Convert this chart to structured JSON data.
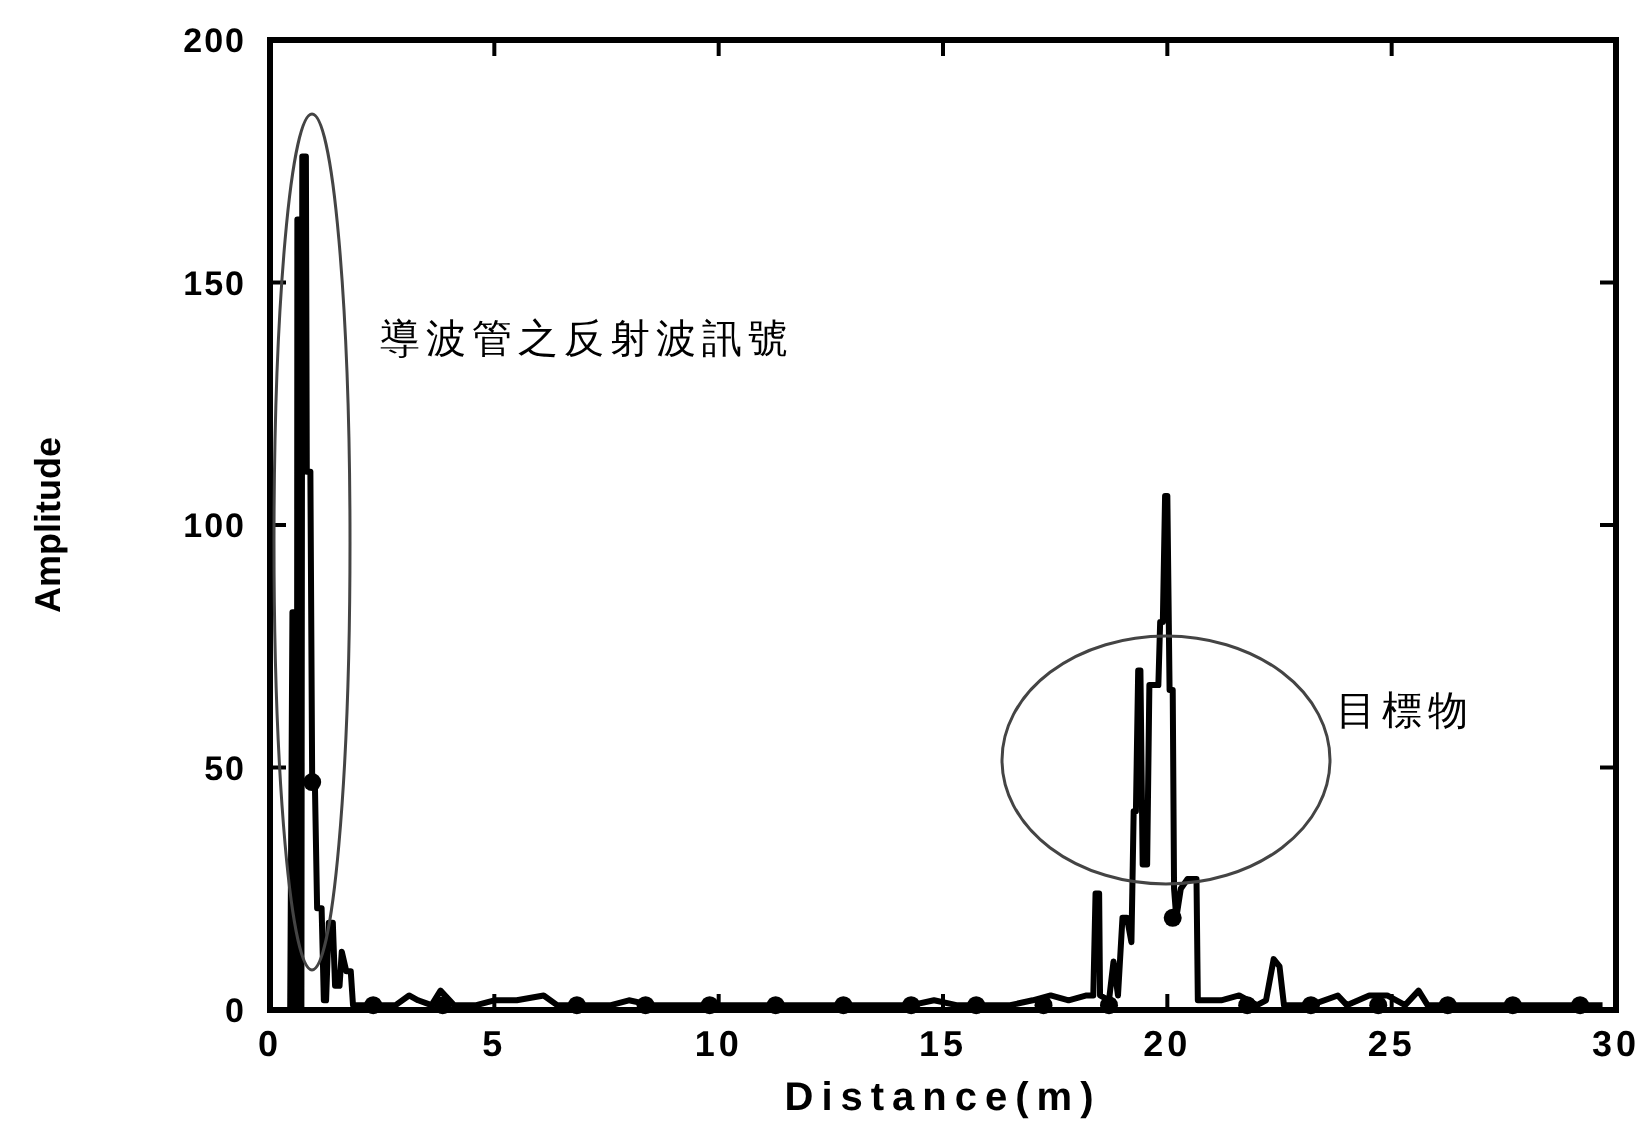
{
  "chart_data": {
    "type": "line",
    "xlabel": "Distance(m)",
    "ylabel": "Amplitude",
    "xlim": [
      0,
      30
    ],
    "ylim": [
      0,
      200
    ],
    "xticks": [
      0,
      5,
      10,
      15,
      20,
      25,
      30
    ],
    "yticks": [
      0,
      50,
      100,
      150,
      200
    ],
    "grid": false,
    "annotations": [
      "導波管之反射波訊號",
      "目標物"
    ],
    "series": [
      {
        "type": "line",
        "color": "#000000",
        "marker": "none",
        "x": [
          0,
          0.45,
          0.5,
          0.55,
          0.56,
          0.6,
          0.61,
          0.66,
          0.67,
          0.7,
          0.72,
          0.8,
          0.82,
          0.9,
          0.94,
          1.0,
          1.05,
          1.15,
          1.2,
          1.25,
          1.31,
          1.4,
          1.45,
          1.55,
          1.6,
          1.7,
          1.8,
          1.85,
          2.3,
          2.8,
          3.1,
          3.3,
          3.6,
          3.8,
          4.1,
          4.6,
          5.0,
          5.5,
          6.1,
          6.4,
          7.0,
          7.6,
          8.0,
          8.5,
          9.2,
          9.8,
          10.3,
          11.0,
          11.6,
          12.3,
          13.0,
          13.6,
          14.3,
          14.8,
          15.3,
          15.9,
          16.5,
          17.0,
          17.4,
          17.8,
          18.2,
          18.35,
          18.4,
          18.48,
          18.5,
          18.7,
          18.8,
          18.9,
          19.0,
          19.1,
          19.2,
          19.25,
          19.3,
          19.35,
          19.4,
          19.45,
          19.55,
          19.6,
          19.7,
          19.8,
          19.84,
          19.9,
          19.95,
          20.0,
          20.05,
          20.12,
          20.15,
          20.2,
          20.3,
          20.45,
          20.65,
          20.68,
          21.2,
          21.6,
          22.0,
          22.2,
          22.37,
          22.5,
          22.6,
          23.2,
          23.8,
          24.0,
          24.5,
          24.9,
          25.3,
          25.6,
          25.8,
          26.3,
          27.0,
          27.7,
          28.5,
          29.2,
          29.7
        ],
        "values": [
          0,
          0,
          82,
          82,
          0,
          0,
          163,
          163,
          0,
          0,
          176,
          176,
          111,
          111,
          47,
          47,
          21,
          21,
          2,
          2,
          18,
          18,
          5,
          5,
          12,
          8,
          8,
          1,
          1,
          1,
          3,
          2,
          1,
          4,
          1,
          1,
          2,
          2,
          3,
          1,
          1,
          1,
          2,
          1,
          1,
          1,
          1,
          1,
          1,
          1,
          1,
          1,
          1,
          2,
          1,
          1,
          1,
          2,
          3,
          2,
          3,
          3,
          24,
          24,
          3,
          2,
          10,
          3,
          19,
          19,
          14,
          41,
          41,
          70,
          70,
          30,
          30,
          67,
          67,
          67,
          80,
          80,
          106,
          106,
          66,
          66,
          25,
          19,
          25,
          27,
          27,
          2,
          2,
          3,
          1,
          2,
          10.5,
          9,
          1,
          1,
          3,
          1,
          3,
          3,
          1,
          4,
          1,
          1,
          1,
          1,
          1,
          1,
          1
        ]
      },
      {
        "type": "scatter",
        "color": "#000000",
        "marker": "circle",
        "x": [
          0.94,
          2.3,
          3.85,
          6.84,
          8.37,
          9.8,
          11.27,
          12.78,
          14.29,
          15.74,
          17.24,
          18.7,
          20.12,
          21.78,
          23.2,
          24.7,
          26.25,
          27.7,
          29.2
        ],
        "values": [
          47,
          1,
          1,
          1,
          1,
          1,
          1,
          1,
          1,
          1,
          1,
          1,
          19,
          1,
          1,
          1,
          1,
          1,
          1
        ]
      }
    ]
  }
}
